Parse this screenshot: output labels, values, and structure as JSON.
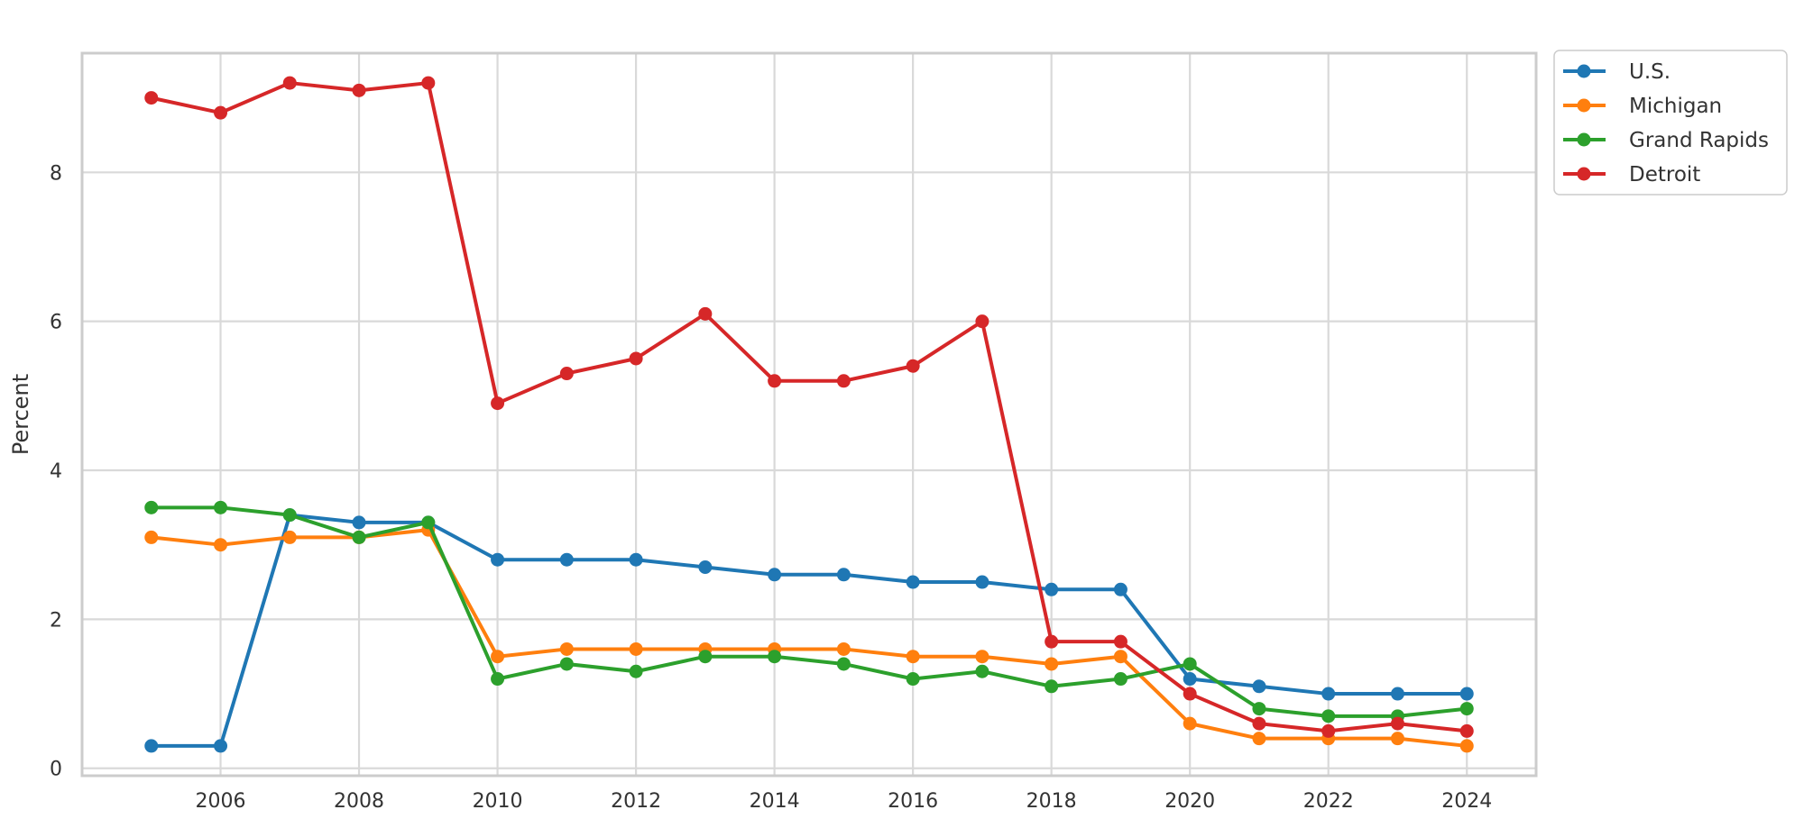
{
  "chart_data": {
    "type": "line",
    "title": "",
    "xlabel": "",
    "ylabel": "Percent",
    "xlim": [
      2004,
      2025
    ],
    "ylim": [
      -0.1,
      9.6
    ],
    "x_ticks": [
      2006,
      2008,
      2010,
      2012,
      2014,
      2016,
      2018,
      2020,
      2022,
      2024
    ],
    "y_ticks": [
      0,
      2,
      4,
      6,
      8
    ],
    "grid": true,
    "legend_position": "outside-top-right",
    "x": [
      2005,
      2006,
      2007,
      2008,
      2009,
      2010,
      2011,
      2012,
      2013,
      2014,
      2015,
      2016,
      2017,
      2018,
      2019,
      2020,
      2021,
      2022,
      2023,
      2024
    ],
    "series": [
      {
        "name": "U.S.",
        "color": "#1f77b4",
        "values": [
          0.3,
          0.3,
          3.4,
          3.3,
          3.3,
          2.8,
          2.8,
          2.8,
          2.7,
          2.6,
          2.6,
          2.5,
          2.5,
          2.4,
          2.4,
          1.2,
          1.1,
          1.0,
          1.0,
          1.0
        ]
      },
      {
        "name": "Michigan",
        "color": "#ff7f0e",
        "values": [
          3.1,
          3.0,
          3.1,
          3.1,
          3.2,
          1.5,
          1.6,
          1.6,
          1.6,
          1.6,
          1.6,
          1.5,
          1.5,
          1.4,
          1.5,
          0.6,
          0.4,
          0.4,
          0.4,
          0.3
        ]
      },
      {
        "name": "Grand Rapids",
        "color": "#2ca02c",
        "values": [
          3.5,
          3.5,
          3.4,
          3.1,
          3.3,
          1.2,
          1.4,
          1.3,
          1.5,
          1.5,
          1.4,
          1.2,
          1.3,
          1.1,
          1.2,
          1.4,
          0.8,
          0.7,
          0.7,
          0.8
        ]
      },
      {
        "name": "Detroit",
        "color": "#d62728",
        "values": [
          9.0,
          8.8,
          9.2,
          9.1,
          9.2,
          4.9,
          5.3,
          5.5,
          6.1,
          5.2,
          5.2,
          5.4,
          6.0,
          1.7,
          1.7,
          1.0,
          0.6,
          0.5,
          0.6,
          0.5
        ]
      }
    ]
  }
}
